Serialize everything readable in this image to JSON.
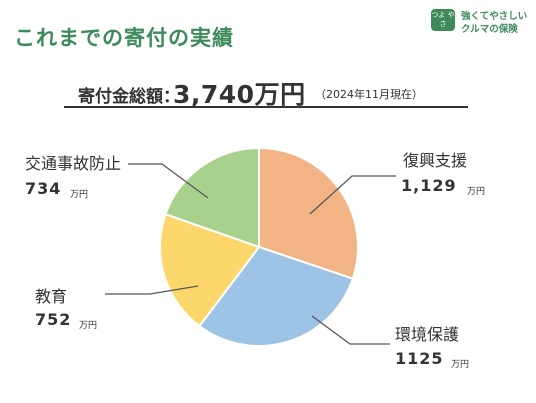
{
  "page": {
    "title": "これまでの寄付の実績"
  },
  "logo": {
    "badge": "つよ やさ",
    "line1": "強くてやさしい",
    "line2": "クルマの保険"
  },
  "total": {
    "label": "寄付金総額：",
    "value": "3,740万円",
    "note": "（2024年11月現在）"
  },
  "labels": [
    {
      "name": "復興支援",
      "value": "1,129",
      "unit": "万円"
    },
    {
      "name": "環境保護",
      "value": "1125",
      "unit": "万円"
    },
    {
      "name": "教育",
      "value": "752",
      "unit": "万円"
    },
    {
      "name": "交通事故防止",
      "value": "734",
      "unit": "万円"
    }
  ],
  "chart_data": {
    "type": "pie",
    "start_angle_deg": 0,
    "direction": "clockwise_from_top",
    "slices": [
      {
        "label": "復興支援",
        "value": 1129,
        "color": "#f2b385"
      },
      {
        "label": "環境保護",
        "value": 1125,
        "color": "#9dc3e6"
      },
      {
        "label": "教育",
        "value": 752,
        "color": "#fcd86c"
      },
      {
        "label": "交通事故防止",
        "value": 734,
        "color": "#a9d18e"
      }
    ],
    "unit": "万円",
    "total": 3740
  }
}
